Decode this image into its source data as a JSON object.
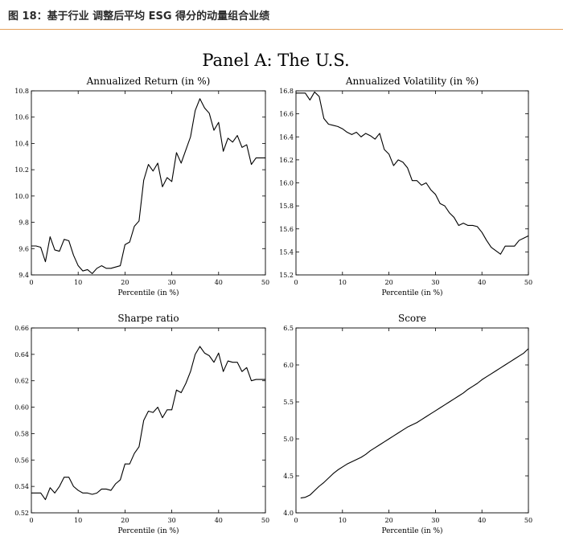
{
  "figure_title": "图 18：基于行业 调整后平均 ESG 得分的动量组合业绩",
  "panel_title": "Panel A: The U.S.",
  "chart_data": [
    {
      "type": "line",
      "title": "Annualized Return (in %)",
      "xlabel": "Percentile (in %)",
      "ylabel": "",
      "xlim": [
        0,
        50
      ],
      "ylim": [
        9.4,
        10.8
      ],
      "xticks": [
        "0",
        "10",
        "20",
        "30",
        "40",
        "50"
      ],
      "yticks": [
        "9.4",
        "9.6",
        "9.8",
        "10.0",
        "10.2",
        "10.4",
        "10.6",
        "10.8"
      ],
      "x": [
        0,
        1,
        2,
        3,
        4,
        5,
        6,
        7,
        8,
        9,
        10,
        11,
        12,
        13,
        14,
        15,
        16,
        17,
        18,
        19,
        20,
        21,
        22,
        23,
        24,
        25,
        26,
        27,
        28,
        29,
        30,
        31,
        32,
        33,
        34,
        35,
        36,
        37,
        38,
        39,
        40,
        41,
        42,
        43,
        44,
        45,
        46,
        47,
        48,
        49,
        50
      ],
      "y": [
        9.62,
        9.62,
        9.61,
        9.5,
        9.69,
        9.59,
        9.58,
        9.67,
        9.66,
        9.55,
        9.47,
        9.43,
        9.44,
        9.41,
        9.45,
        9.47,
        9.45,
        9.45,
        9.46,
        9.47,
        9.63,
        9.65,
        9.77,
        9.81,
        10.12,
        10.24,
        10.19,
        10.25,
        10.07,
        10.14,
        10.11,
        10.33,
        10.25,
        10.35,
        10.45,
        10.65,
        10.74,
        10.67,
        10.63,
        10.5,
        10.56,
        10.34,
        10.44,
        10.41,
        10.46,
        10.37,
        10.39,
        10.24,
        10.29,
        10.29,
        10.29
      ]
    },
    {
      "type": "line",
      "title": "Annualized Volatility (in %)",
      "xlabel": "Percentile (in %)",
      "ylabel": "",
      "xlim": [
        0,
        50
      ],
      "ylim": [
        15.2,
        16.8
      ],
      "xticks": [
        "0",
        "10",
        "20",
        "30",
        "40",
        "50"
      ],
      "yticks": [
        "15.2",
        "15.4",
        "15.6",
        "15.8",
        "16.0",
        "16.2",
        "16.4",
        "16.6",
        "16.8"
      ],
      "x": [
        0,
        1,
        2,
        3,
        4,
        5,
        6,
        7,
        8,
        9,
        10,
        11,
        12,
        13,
        14,
        15,
        16,
        17,
        18,
        19,
        20,
        21,
        22,
        23,
        24,
        25,
        26,
        27,
        28,
        29,
        30,
        31,
        32,
        33,
        34,
        35,
        36,
        37,
        38,
        39,
        40,
        41,
        42,
        43,
        44,
        45,
        46,
        47,
        48,
        49,
        50
      ],
      "y": [
        16.78,
        16.78,
        16.78,
        16.72,
        16.79,
        16.75,
        16.56,
        16.51,
        16.5,
        16.49,
        16.47,
        16.44,
        16.42,
        16.44,
        16.4,
        16.43,
        16.41,
        16.38,
        16.43,
        16.29,
        16.25,
        16.15,
        16.2,
        16.18,
        16.13,
        16.02,
        16.02,
        15.98,
        16.0,
        15.94,
        15.9,
        15.82,
        15.8,
        15.74,
        15.7,
        15.63,
        15.65,
        15.63,
        15.63,
        15.62,
        15.57,
        15.5,
        15.44,
        15.41,
        15.38,
        15.45,
        15.45,
        15.45,
        15.5,
        15.52,
        15.54
      ]
    },
    {
      "type": "line",
      "title": "Sharpe ratio",
      "xlabel": "Percentile (in %)",
      "ylabel": "",
      "xlim": [
        0,
        50
      ],
      "ylim": [
        0.52,
        0.66
      ],
      "xticks": [
        "0",
        "10",
        "20",
        "30",
        "40",
        "50"
      ],
      "yticks": [
        "0.52",
        "0.54",
        "0.56",
        "0.58",
        "0.60",
        "0.62",
        "0.64",
        "0.66"
      ],
      "x": [
        0,
        1,
        2,
        3,
        4,
        5,
        6,
        7,
        8,
        9,
        10,
        11,
        12,
        13,
        14,
        15,
        16,
        17,
        18,
        19,
        20,
        21,
        22,
        23,
        24,
        25,
        26,
        27,
        28,
        29,
        30,
        31,
        32,
        33,
        34,
        35,
        36,
        37,
        38,
        39,
        40,
        41,
        42,
        43,
        44,
        45,
        46,
        47,
        48,
        49,
        50
      ],
      "y": [
        0.535,
        0.535,
        0.535,
        0.53,
        0.539,
        0.535,
        0.54,
        0.547,
        0.547,
        0.54,
        0.537,
        0.535,
        0.535,
        0.534,
        0.535,
        0.538,
        0.538,
        0.537,
        0.542,
        0.545,
        0.557,
        0.557,
        0.565,
        0.57,
        0.59,
        0.597,
        0.596,
        0.6,
        0.592,
        0.598,
        0.598,
        0.613,
        0.611,
        0.618,
        0.627,
        0.64,
        0.646,
        0.641,
        0.639,
        0.634,
        0.641,
        0.627,
        0.635,
        0.634,
        0.634,
        0.627,
        0.63,
        0.62,
        0.621,
        0.621,
        0.621
      ]
    },
    {
      "type": "line",
      "title": "Score",
      "xlabel": "Percentile (in %)",
      "ylabel": "",
      "xlim": [
        0,
        50
      ],
      "ylim": [
        4.0,
        6.5
      ],
      "xticks": [
        "0",
        "10",
        "20",
        "30",
        "40",
        "50"
      ],
      "yticks": [
        "4.0",
        "4.5",
        "5.0",
        "5.5",
        "6.0",
        "6.5"
      ],
      "x": [
        1,
        2,
        3,
        4,
        5,
        6,
        7,
        8,
        9,
        10,
        11,
        12,
        13,
        14,
        15,
        16,
        17,
        18,
        19,
        20,
        21,
        22,
        23,
        24,
        25,
        26,
        27,
        28,
        29,
        30,
        31,
        32,
        33,
        34,
        35,
        36,
        37,
        38,
        39,
        40,
        41,
        42,
        43,
        44,
        45,
        46,
        47,
        48,
        49,
        50
      ],
      "y": [
        4.2,
        4.21,
        4.24,
        4.3,
        4.36,
        4.41,
        4.47,
        4.53,
        4.58,
        4.62,
        4.66,
        4.69,
        4.72,
        4.75,
        4.79,
        4.84,
        4.88,
        4.92,
        4.96,
        5.0,
        5.04,
        5.08,
        5.12,
        5.16,
        5.19,
        5.22,
        5.26,
        5.3,
        5.34,
        5.38,
        5.42,
        5.46,
        5.5,
        5.54,
        5.58,
        5.62,
        5.67,
        5.71,
        5.75,
        5.8,
        5.84,
        5.88,
        5.92,
        5.96,
        6.0,
        6.04,
        6.08,
        6.12,
        6.16,
        6.22
      ]
    }
  ]
}
